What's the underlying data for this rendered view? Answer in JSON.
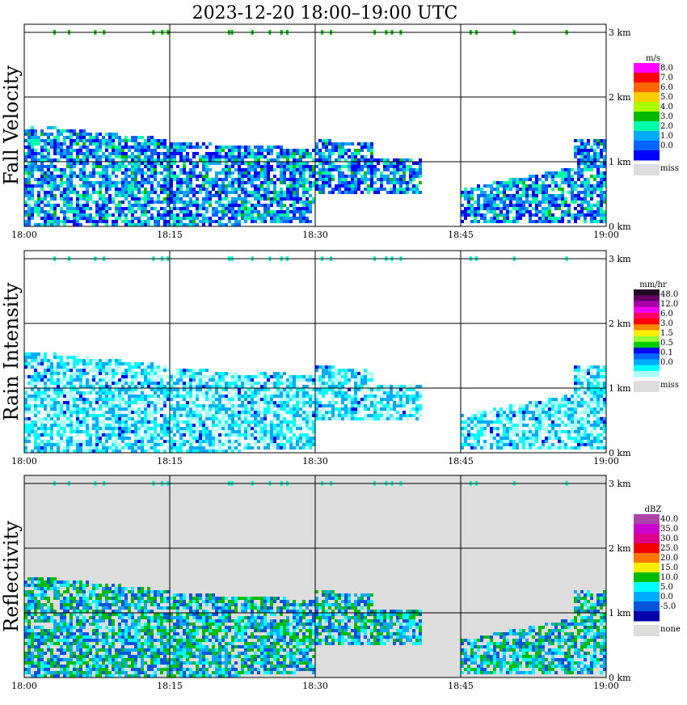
{
  "title": "2023-12-20   18:00–19:00 UTC",
  "x_ticks": [
    "18:00",
    "18:15",
    "18:30",
    "18:45",
    "19:00"
  ],
  "height_ticks": [
    "0 km",
    "1 km",
    "2 km",
    "3 km"
  ],
  "chart_data": [
    {
      "type": "heatmap",
      "ylabel": "Fall Velocity",
      "units": "m/s",
      "xlim": [
        "18:00",
        "19:00"
      ],
      "ylim_km": [
        0,
        3.1
      ],
      "legend": {
        "labels": [
          "8.0",
          "7.0",
          "6.0",
          "5.0",
          "4.0",
          "3.0",
          "2.0",
          "1.0",
          "0.0"
        ],
        "colors": [
          "#ff00ff",
          "#ff0000",
          "#ff6600",
          "#ffcc00",
          "#aaff00",
          "#00bb00",
          "#00ffaa",
          "#00aaff",
          "#0066ff",
          "#0000ff"
        ],
        "missing_label": "miss",
        "missing_color": "#dddddd"
      },
      "background": "#ffffff"
    },
    {
      "type": "heatmap",
      "ylabel": "Rain Intensity",
      "units": "mm/hr",
      "xlim": [
        "18:00",
        "19:00"
      ],
      "ylim_km": [
        0,
        3.1
      ],
      "legend": {
        "labels": [
          "48.0",
          "12.0",
          "6.0",
          "3.0",
          "1.5",
          "0.5",
          "0.1",
          "0.0"
        ],
        "colors": [
          "#220022",
          "#660066",
          "#aa00aa",
          "#ee00ee",
          "#ff0066",
          "#ff0000",
          "#ff8800",
          "#ffee00",
          "#99ff33",
          "#00cc00",
          "#0000ff",
          "#0066ff",
          "#00aaff",
          "#00ffff",
          "#aaffff"
        ],
        "missing_label": "miss",
        "missing_color": "#dddddd"
      },
      "background": "#ffffff"
    },
    {
      "type": "heatmap",
      "ylabel": "Reflectivity",
      "units": "dBZ",
      "xlim": [
        "18:00",
        "19:00"
      ],
      "ylim_km": [
        0,
        3.1
      ],
      "legend": {
        "labels": [
          "40.0",
          "35.0",
          "30.0",
          "25.0",
          "20.0",
          "15.0",
          "10.0",
          "5.0",
          "0.0",
          "-5.0"
        ],
        "colors": [
          "#aa44aa",
          "#cc00cc",
          "#dd0088",
          "#ee0000",
          "#ff7700",
          "#ffee00",
          "#00bb00",
          "#00ffff",
          "#00aaff",
          "#0055dd",
          "#0000aa"
        ],
        "missing_label": "none",
        "missing_color": "#dddddd"
      },
      "background": "#dddddd"
    }
  ]
}
